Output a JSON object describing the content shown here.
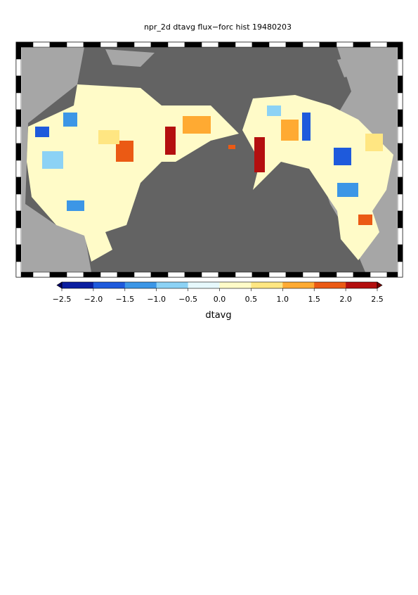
{
  "title": "npr_2d dtavg flux−forc hist 19480203",
  "colorbar": {
    "label": "dtavg",
    "clim": [
      -2.5,
      2.5
    ],
    "ticks": [
      {
        "value": -2.5,
        "label": "−2.5"
      },
      {
        "value": -2.0,
        "label": "−2.0"
      },
      {
        "value": -1.5,
        "label": "−1.5"
      },
      {
        "value": -1.0,
        "label": "−1.0"
      },
      {
        "value": -0.5,
        "label": "−0.5"
      },
      {
        "value": 0.0,
        "label": "0.0"
      },
      0.5,
      {
        "value": 1.0,
        "label": "1.0"
      },
      1.5,
      {
        "value": 2.0,
        "label": "2.0"
      },
      2.5
    ],
    "colors": [
      "#0a1ea0",
      "#1e5adc",
      "#3c96e6",
      "#8cd2f5",
      "#e6f8fc",
      "#fffbc8",
      "#ffe682",
      "#ffaa32",
      "#eb5a14",
      "#b40f0f"
    ],
    "under_color": "#000064",
    "over_color": "#780000"
  }
}
